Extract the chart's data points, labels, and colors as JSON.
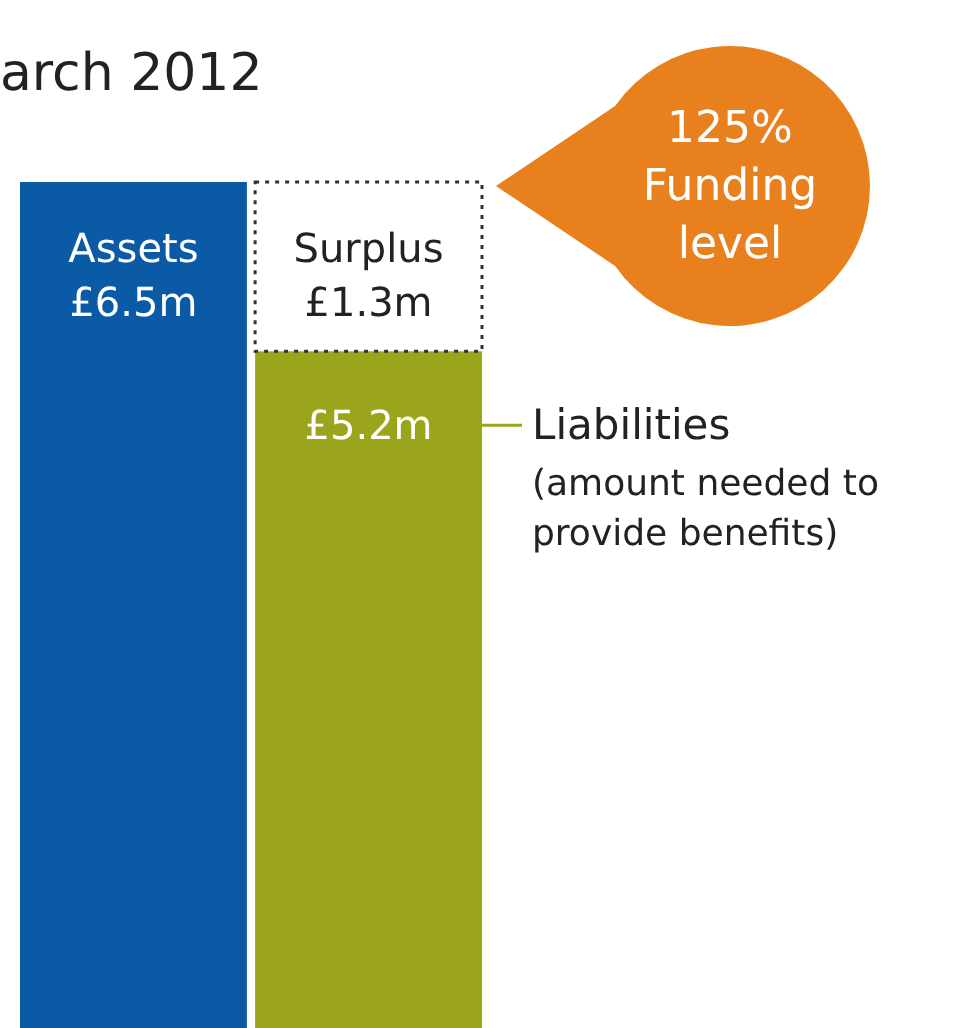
{
  "chart_data": {
    "type": "bar",
    "title": "arch 2012",
    "categories": [
      null,
      null
    ],
    "stacked": true,
    "legend": "right",
    "series": [
      {
        "name": "Assets",
        "color": "#0a5aa5",
        "values": [
          6.5,
          null
        ],
        "value_labels": [
          "£6.5m",
          null
        ]
      },
      {
        "name": "Liabilities",
        "color": "#9ba51c",
        "values": [
          null,
          5.2
        ],
        "value_labels": [
          null,
          "£5.2m"
        ]
      },
      {
        "name": "Surplus",
        "color": "#ffffff",
        "values": [
          null,
          1.3
        ],
        "value_labels": [
          null,
          "£1.3m"
        ]
      }
    ],
    "annotations": [
      "(amount needed to provide benefits)",
      "125% Funding level"
    ]
  }
}
